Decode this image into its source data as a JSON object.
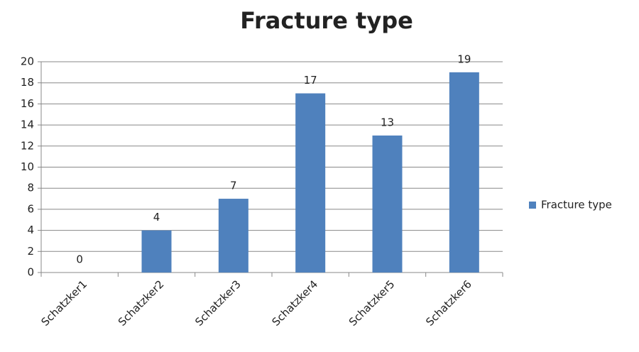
{
  "chart_data": {
    "type": "bar",
    "title": "Fracture type",
    "categories": [
      "Schatzker1",
      "Schatzker2",
      "Schatzker3",
      "Schatzker4",
      "Schatzker5",
      "Schatzker6"
    ],
    "series": [
      {
        "name": "Fracture type",
        "color": "#4f81bd",
        "values": [
          0,
          4,
          7,
          17,
          13,
          19
        ]
      }
    ],
    "ylim": [
      0,
      20
    ],
    "yticks": [
      0,
      2,
      4,
      6,
      8,
      10,
      12,
      14,
      16,
      18,
      20
    ],
    "grid": true,
    "legend": "right"
  }
}
